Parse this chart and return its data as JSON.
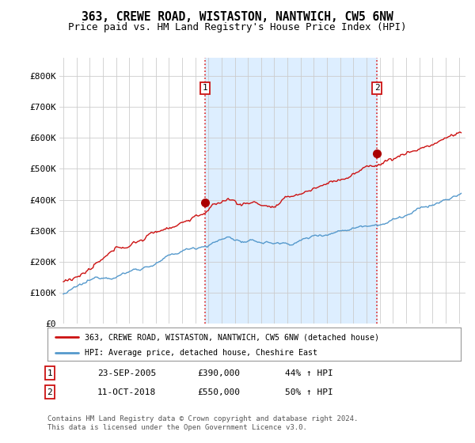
{
  "title": "363, CREWE ROAD, WISTASTON, NANTWICH, CW5 6NW",
  "subtitle": "Price paid vs. HM Land Registry's House Price Index (HPI)",
  "ylabel_ticks": [
    "£0",
    "£100K",
    "£200K",
    "£300K",
    "£400K",
    "£500K",
    "£600K",
    "£700K",
    "£800K"
  ],
  "ytick_values": [
    0,
    100000,
    200000,
    300000,
    400000,
    500000,
    600000,
    700000,
    800000
  ],
  "ylim": [
    0,
    860000
  ],
  "xlim_start": 1994.7,
  "xlim_end": 2025.5,
  "sale1_x": 2005.73,
  "sale1_y": 390000,
  "sale1_label": "1",
  "sale2_x": 2018.78,
  "sale2_y": 550000,
  "sale2_label": "2",
  "vline_color": "#dd2222",
  "vline_style": ":",
  "shade_color": "#ddeeff",
  "sale_marker_color": "#aa0000",
  "hpi_line_color": "#5599cc",
  "price_line_color": "#cc1111",
  "legend_entry1": "363, CREWE ROAD, WISTASTON, NANTWICH, CW5 6NW (detached house)",
  "legend_entry2": "HPI: Average price, detached house, Cheshire East",
  "table_row1": [
    "1",
    "23-SEP-2005",
    "£390,000",
    "44% ↑ HPI"
  ],
  "table_row2": [
    "2",
    "11-OCT-2018",
    "£550,000",
    "50% ↑ HPI"
  ],
  "footer": "Contains HM Land Registry data © Crown copyright and database right 2024.\nThis data is licensed under the Open Government Licence v3.0.",
  "bg_color": "#ffffff",
  "grid_color": "#cccccc",
  "title_fontsize": 10.5,
  "subtitle_fontsize": 9,
  "tick_fontsize": 8
}
